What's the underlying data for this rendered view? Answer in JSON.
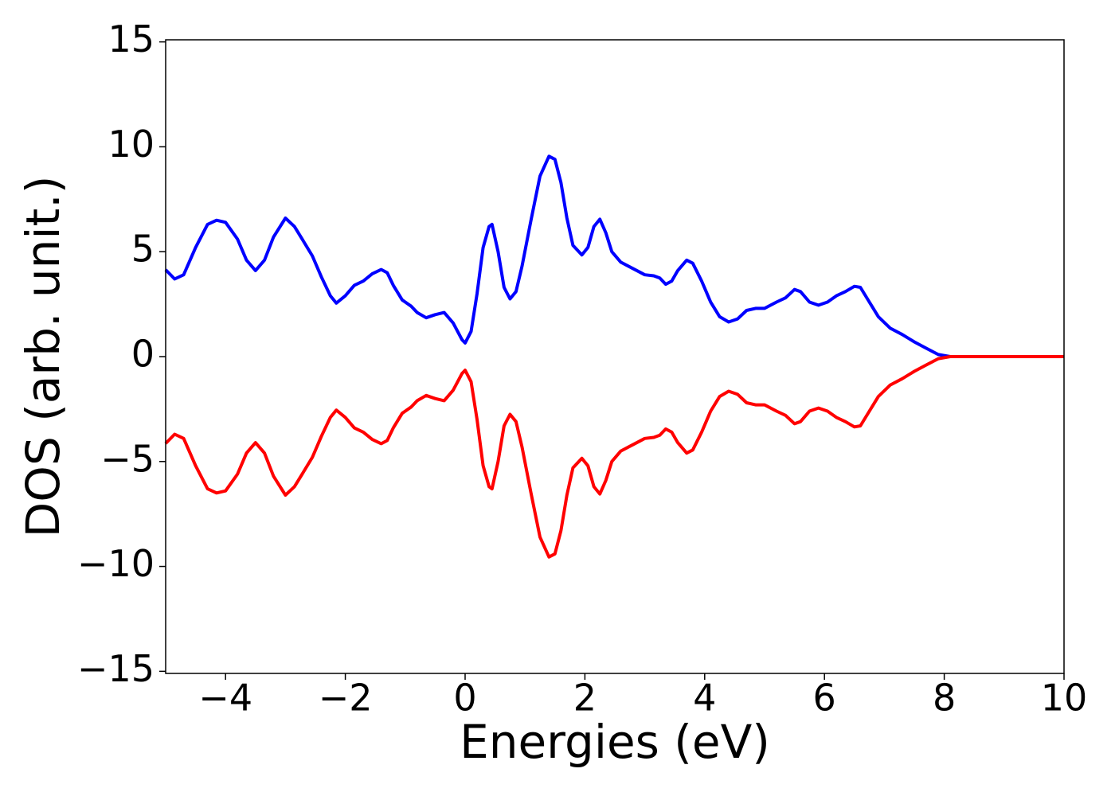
{
  "chart_data": {
    "type": "line",
    "xlabel": "Energies (eV)",
    "ylabel": "DOS (arb. unit.)",
    "x": [
      -5,
      -4.85,
      -4.7,
      -4.5,
      -4.3,
      -4.15,
      -4,
      -3.8,
      -3.65,
      -3.5,
      -3.35,
      -3.2,
      -3,
      -2.85,
      -2.7,
      -2.55,
      -2.4,
      -2.25,
      -2.15,
      -2,
      -1.85,
      -1.7,
      -1.55,
      -1.4,
      -1.3,
      -1.2,
      -1.05,
      -0.9,
      -0.8,
      -0.65,
      -0.5,
      -0.35,
      -0.2,
      -0.05,
      0,
      0.1,
      0.2,
      0.3,
      0.4,
      0.45,
      0.55,
      0.65,
      0.75,
      0.85,
      0.95,
      1.1,
      1.25,
      1.4,
      1.5,
      1.6,
      1.7,
      1.8,
      1.95,
      2.05,
      2.15,
      2.25,
      2.35,
      2.45,
      2.6,
      2.8,
      3,
      3.15,
      3.25,
      3.35,
      3.45,
      3.55,
      3.7,
      3.8,
      3.95,
      4.1,
      4.25,
      4.4,
      4.55,
      4.7,
      4.85,
      5,
      5.2,
      5.35,
      5.5,
      5.6,
      5.75,
      5.9,
      6.05,
      6.2,
      6.35,
      6.5,
      6.6,
      6.75,
      6.9,
      7.1,
      7.3,
      7.5,
      7.7,
      7.9,
      8.1,
      10
    ],
    "series": [
      {
        "color": "#0000ff",
        "values": [
          4.14,
          3.7,
          3.9,
          5.2,
          6.3,
          6.5,
          6.4,
          5.6,
          4.6,
          4.1,
          4.6,
          5.7,
          6.6,
          6.2,
          5.5,
          4.8,
          3.8,
          2.9,
          2.55,
          2.9,
          3.4,
          3.6,
          3.95,
          4.15,
          4.0,
          3.4,
          2.7,
          2.4,
          2.1,
          1.85,
          2.0,
          2.1,
          1.6,
          0.8,
          0.65,
          1.2,
          3.0,
          5.2,
          6.2,
          6.3,
          5.0,
          3.3,
          2.75,
          3.1,
          4.3,
          6.5,
          8.6,
          9.55,
          9.4,
          8.3,
          6.6,
          5.3,
          4.85,
          5.2,
          6.2,
          6.55,
          5.9,
          5.0,
          4.5,
          4.2,
          3.9,
          3.85,
          3.75,
          3.45,
          3.6,
          4.1,
          4.6,
          4.45,
          3.6,
          2.6,
          1.9,
          1.65,
          1.8,
          2.2,
          2.3,
          2.3,
          2.6,
          2.8,
          3.2,
          3.1,
          2.6,
          2.45,
          2.6,
          2.9,
          3.1,
          3.35,
          3.3,
          2.6,
          1.9,
          1.35,
          1.05,
          0.7,
          0.4,
          0.1,
          0,
          0
        ]
      },
      {
        "color": "#ff0000",
        "values": [
          -4.14,
          -3.7,
          -3.9,
          -5.2,
          -6.3,
          -6.5,
          -6.4,
          -5.6,
          -4.6,
          -4.1,
          -4.6,
          -5.7,
          -6.6,
          -6.2,
          -5.5,
          -4.8,
          -3.8,
          -2.9,
          -2.55,
          -2.9,
          -3.4,
          -3.6,
          -3.95,
          -4.15,
          -4.0,
          -3.4,
          -2.7,
          -2.4,
          -2.1,
          -1.85,
          -2.0,
          -2.1,
          -1.6,
          -0.8,
          -0.65,
          -1.2,
          -3.0,
          -5.2,
          -6.2,
          -6.3,
          -5.0,
          -3.3,
          -2.75,
          -3.1,
          -4.3,
          -6.5,
          -8.6,
          -9.55,
          -9.4,
          -8.3,
          -6.6,
          -5.3,
          -4.85,
          -5.2,
          -6.2,
          -6.55,
          -5.9,
          -5.0,
          -4.5,
          -4.2,
          -3.9,
          -3.85,
          -3.75,
          -3.45,
          -3.6,
          -4.1,
          -4.6,
          -4.45,
          -3.6,
          -2.6,
          -1.9,
          -1.65,
          -1.8,
          -2.2,
          -2.3,
          -2.3,
          -2.6,
          -2.8,
          -3.2,
          -3.1,
          -2.6,
          -2.45,
          -2.6,
          -2.9,
          -3.1,
          -3.35,
          -3.3,
          -2.6,
          -1.9,
          -1.35,
          -1.05,
          -0.7,
          -0.4,
          -0.1,
          0,
          0
        ]
      }
    ],
    "xlim": [
      -5,
      10
    ],
    "xticks": [
      {
        "value": -4,
        "label": "−4"
      },
      {
        "value": -2,
        "label": "−2"
      },
      0,
      2,
      4,
      6,
      8,
      10
    ],
    "ylim": [
      -15.1,
      15.1
    ],
    "yticks": [
      {
        "value": -15,
        "label": "−15"
      },
      {
        "value": -10,
        "label": "−10"
      },
      {
        "value": -5,
        "label": "−5"
      },
      0,
      5,
      10,
      15
    ],
    "grid": false
  }
}
